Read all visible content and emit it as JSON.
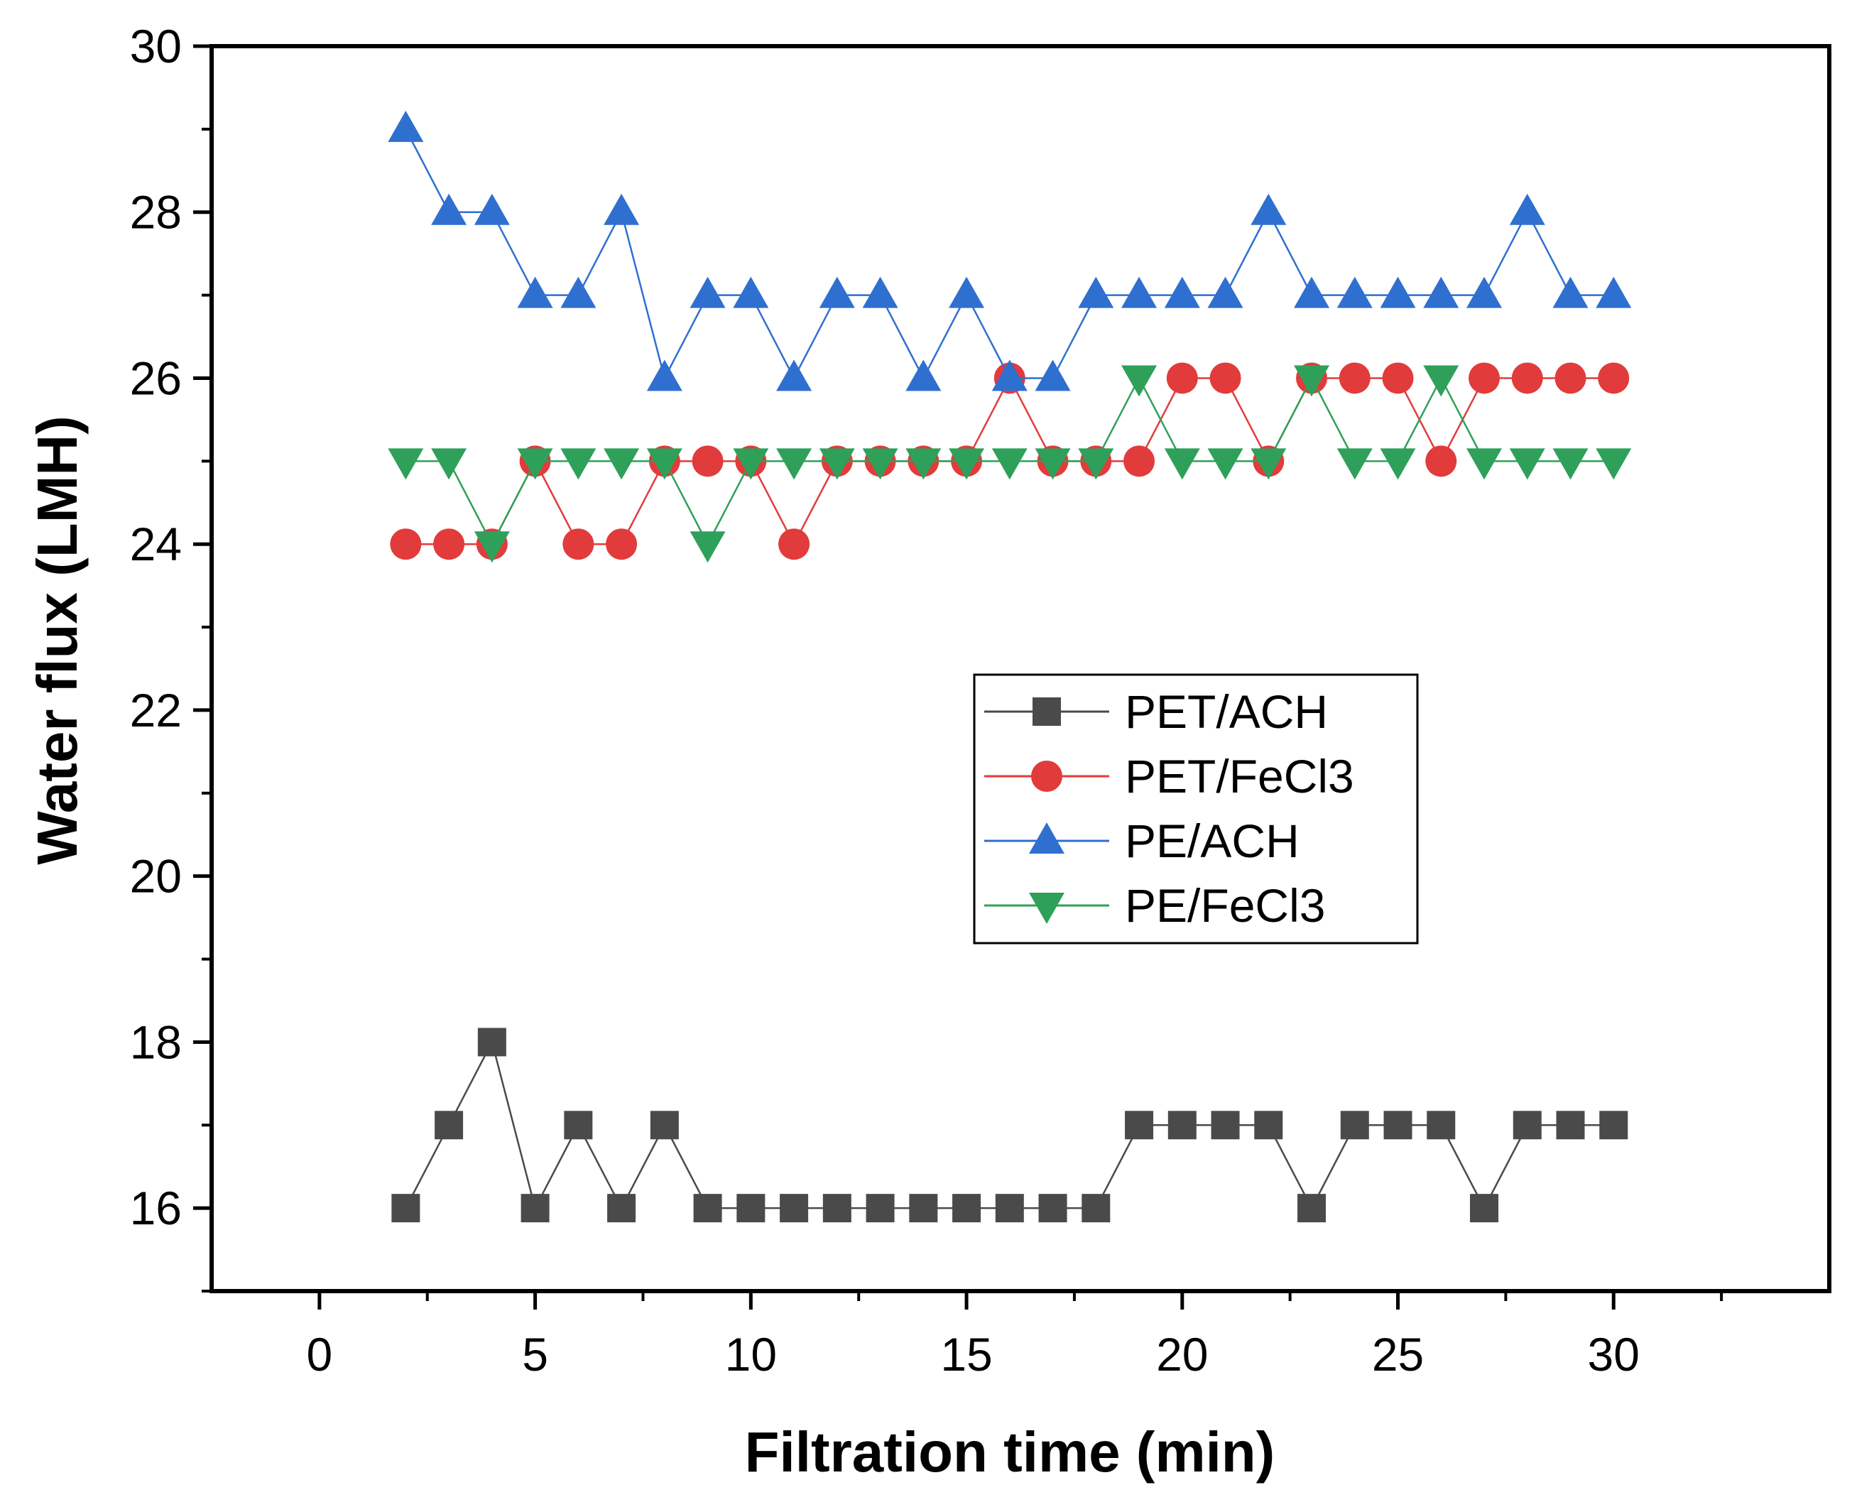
{
  "chart_data": {
    "type": "line",
    "xlabel": "Filtration time (min)",
    "ylabel": "Water flux (LMH)",
    "xlim": [
      -2.5,
      35
    ],
    "ylim": [
      15,
      30
    ],
    "xticks": [
      0,
      5,
      10,
      15,
      20,
      25,
      30
    ],
    "yticks": [
      16,
      18,
      20,
      22,
      24,
      26,
      28,
      30
    ],
    "grid": false,
    "legend_position": "center-right",
    "x": [
      2,
      3,
      4,
      5,
      6,
      7,
      8,
      9,
      10,
      11,
      12,
      13,
      14,
      15,
      16,
      17,
      18,
      19,
      20,
      21,
      22,
      23,
      24,
      25,
      26,
      27,
      28,
      29,
      30
    ],
    "series": [
      {
        "name": "PET/ACH",
        "marker": "square",
        "color": "#4a4a4a",
        "values": [
          16,
          17,
          18,
          16,
          17,
          16,
          17,
          16,
          16,
          16,
          16,
          16,
          16,
          16,
          16,
          16,
          16,
          17,
          17,
          17,
          17,
          16,
          17,
          17,
          17,
          16,
          17,
          17,
          17
        ]
      },
      {
        "name": "PET/FeCl3",
        "marker": "circle",
        "color": "#e23b3b",
        "values": [
          24,
          24,
          24,
          25,
          24,
          24,
          25,
          25,
          25,
          24,
          25,
          25,
          25,
          25,
          26,
          25,
          25,
          25,
          26,
          26,
          25,
          26,
          26,
          26,
          25,
          26,
          26,
          26,
          26
        ]
      },
      {
        "name": "PE/ACH",
        "marker": "triangle-up",
        "color": "#2f6fd0",
        "values": [
          29,
          28,
          28,
          27,
          27,
          28,
          26,
          27,
          27,
          26,
          27,
          27,
          26,
          27,
          26,
          26,
          27,
          27,
          27,
          27,
          28,
          27,
          27,
          27,
          27,
          27,
          28,
          27,
          27
        ]
      },
      {
        "name": "PE/FeCl3",
        "marker": "triangle-down",
        "color": "#2fa05a",
        "values": [
          25,
          25,
          24,
          25,
          25,
          25,
          25,
          24,
          25,
          25,
          25,
          25,
          25,
          25,
          25,
          25,
          25,
          26,
          25,
          25,
          25,
          26,
          25,
          25,
          26,
          25,
          25,
          25,
          25
        ]
      }
    ]
  }
}
